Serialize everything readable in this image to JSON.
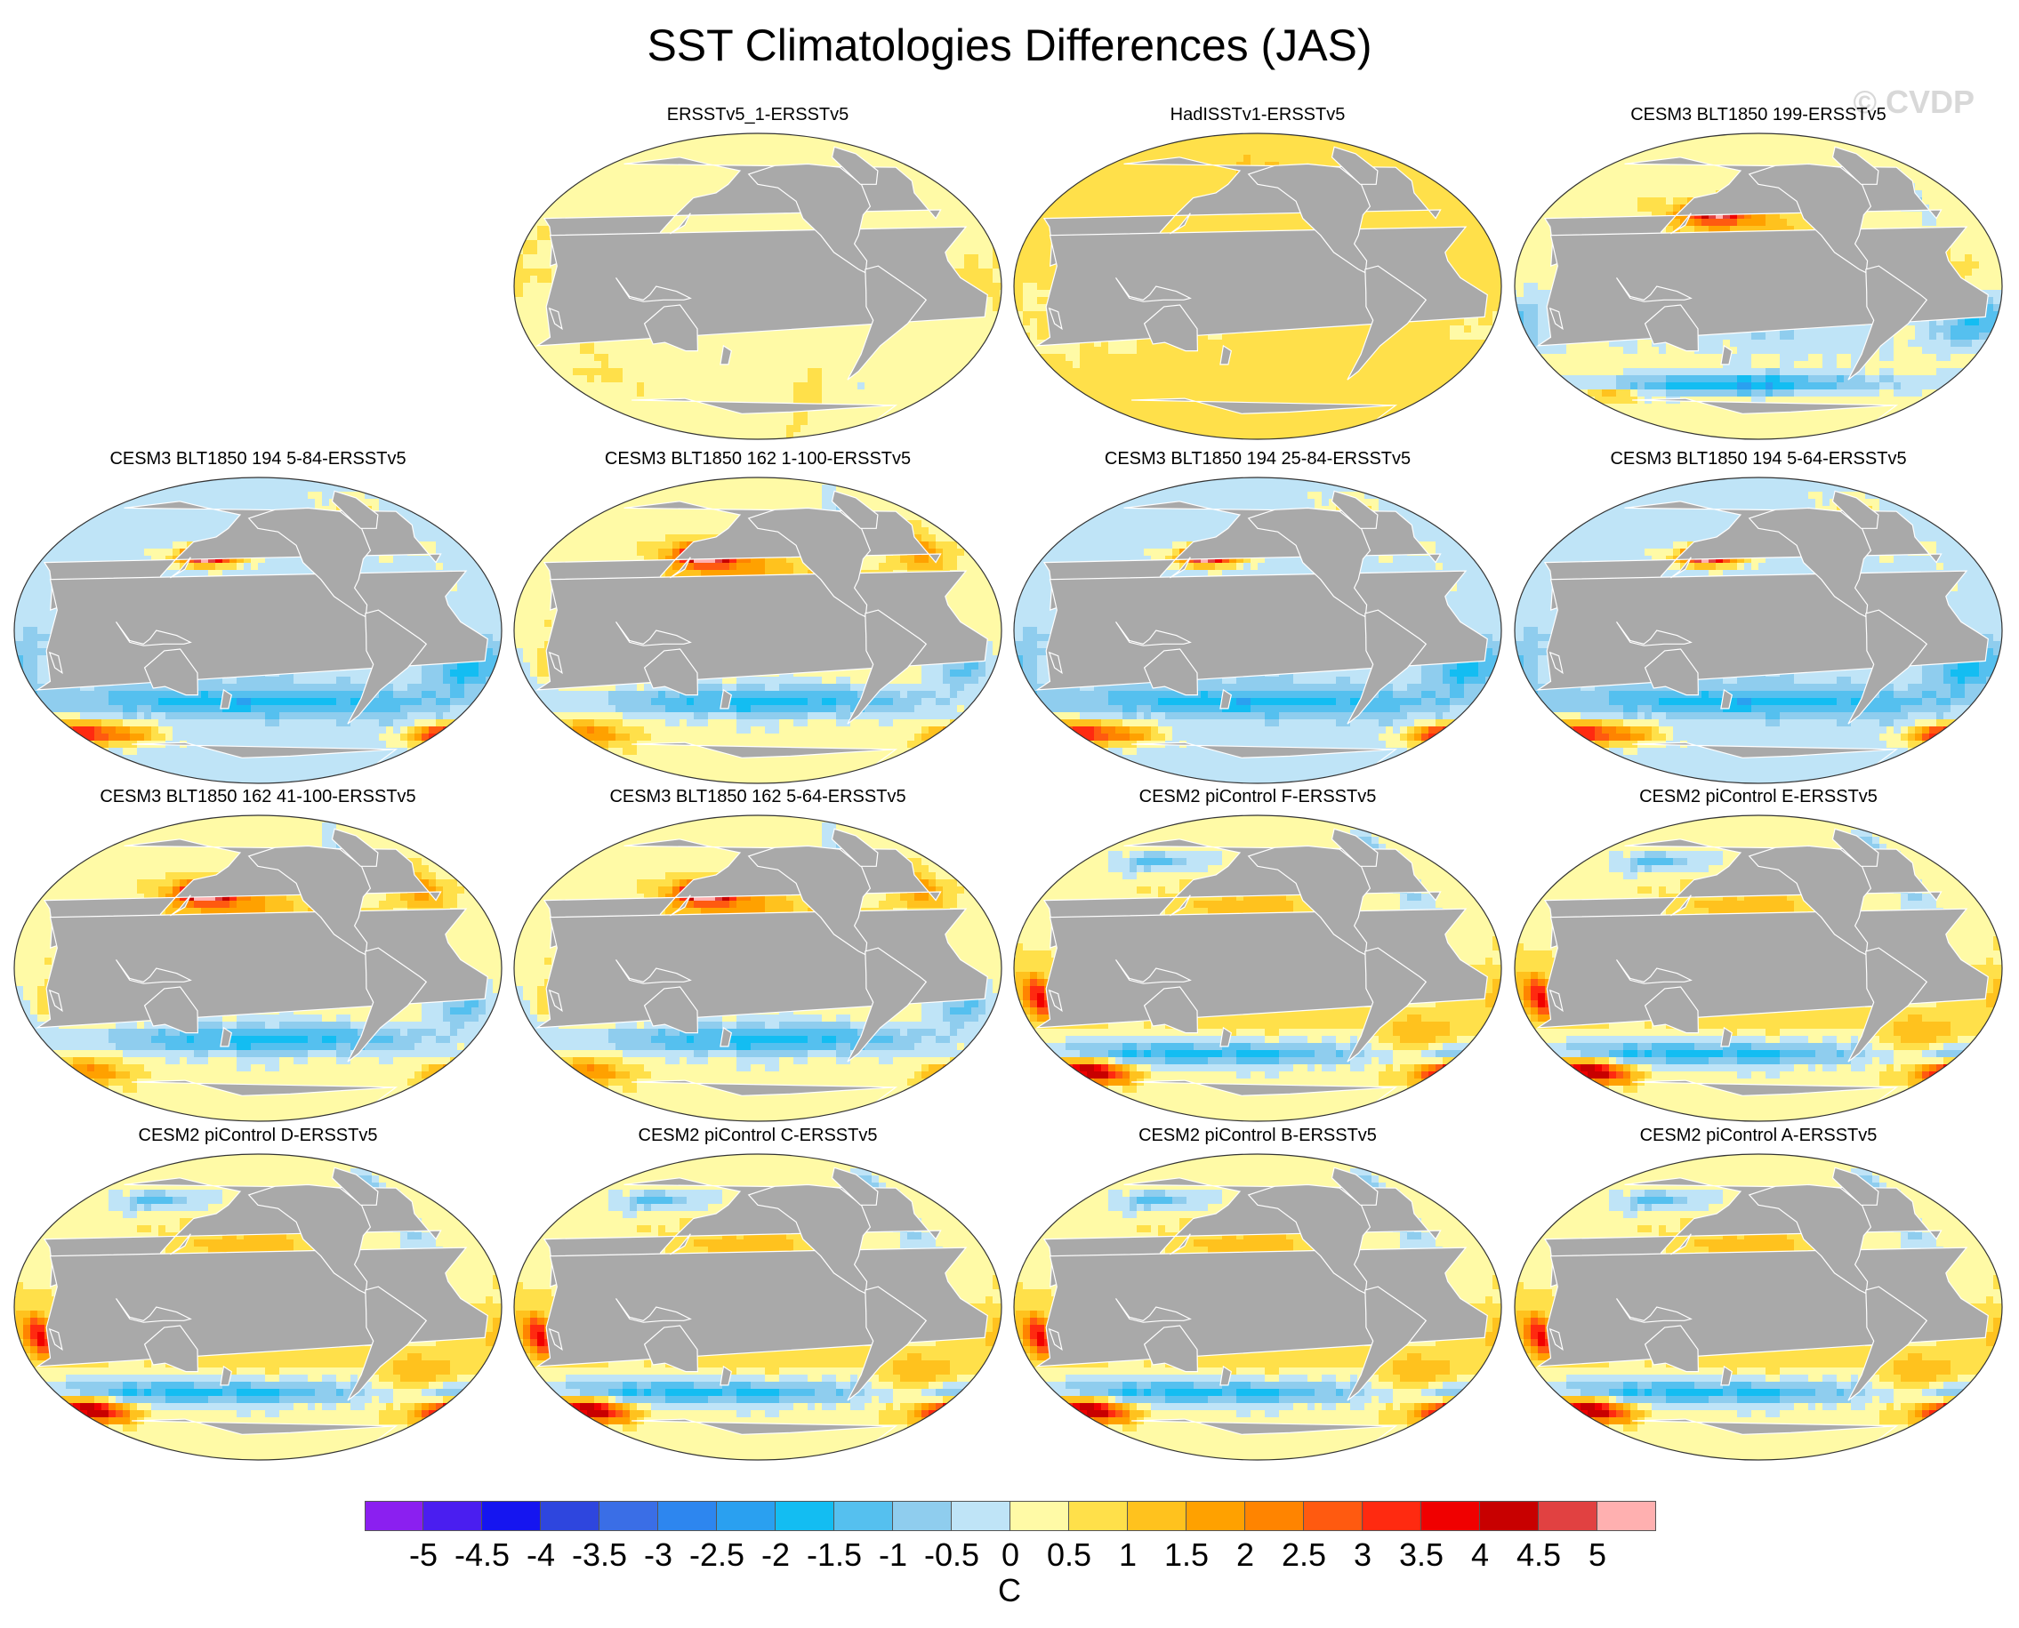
{
  "title": "SST Climatologies Differences (JAS)",
  "watermark": "© CVDP",
  "units": "C",
  "colors": {
    "land": "#a9a9a9",
    "levels": [
      "#8b1ff0",
      "#4a1ef0",
      "#1515f0",
      "#2e46de",
      "#3a6ee6",
      "#2d86ef",
      "#2aa0f0",
      "#13bdf2",
      "#55c0ef",
      "#8fcdee",
      "#bfe4f7",
      "#fffaa6",
      "#ffe04a",
      "#ffc21e",
      "#ffa100",
      "#ff8400",
      "#ff5a10",
      "#ff2a10",
      "#f00000",
      "#c80000",
      "#e14141",
      "#ffb0b0"
    ]
  },
  "colorbar": {
    "ticks": [
      "-5",
      "-4.5",
      "-4",
      "-3.5",
      "-3",
      "-2.5",
      "-2",
      "-1.5",
      "-1",
      "-0.5",
      "0",
      "0.5",
      "1",
      "1.5",
      "2",
      "2.5",
      "3",
      "3.5",
      "4",
      "4.5",
      "5"
    ]
  },
  "panels": [
    {
      "title": "ERSSTv5_1-ERSSTv5",
      "pattern": "ersst"
    },
    {
      "title": "HadISSTv1-ERSSTv5",
      "pattern": "hadisst"
    },
    {
      "title": "CESM3 BLT1850 199-ERSSTv5",
      "pattern": "cesm3a"
    },
    {
      "title": "CESM3 BLT1850 194 5-84-ERSSTv5",
      "pattern": "cesm3b"
    },
    {
      "title": "CESM3 BLT1850 162 1-100-ERSSTv5",
      "pattern": "cesm3c"
    },
    {
      "title": "CESM3 BLT1850 194 25-84-ERSSTv5",
      "pattern": "cesm3b"
    },
    {
      "title": "CESM3 BLT1850 194 5-64-ERSSTv5",
      "pattern": "cesm3b"
    },
    {
      "title": "CESM3 BLT1850 162 41-100-ERSSTv5",
      "pattern": "cesm3c"
    },
    {
      "title": "CESM3 BLT1850 162 5-64-ERSSTv5",
      "pattern": "cesm3c"
    },
    {
      "title": "CESM2 piControl F-ERSSTv5",
      "pattern": "cesm2"
    },
    {
      "title": "CESM2 piControl E-ERSSTv5",
      "pattern": "cesm2"
    },
    {
      "title": "CESM2 piControl D-ERSSTv5",
      "pattern": "cesm2"
    },
    {
      "title": "CESM2 piControl C-ERSSTv5",
      "pattern": "cesm2"
    },
    {
      "title": "CESM2 piControl B-ERSSTv5",
      "pattern": "cesm2"
    },
    {
      "title": "CESM2 piControl A-ERSSTv5",
      "pattern": "cesm2"
    }
  ]
}
